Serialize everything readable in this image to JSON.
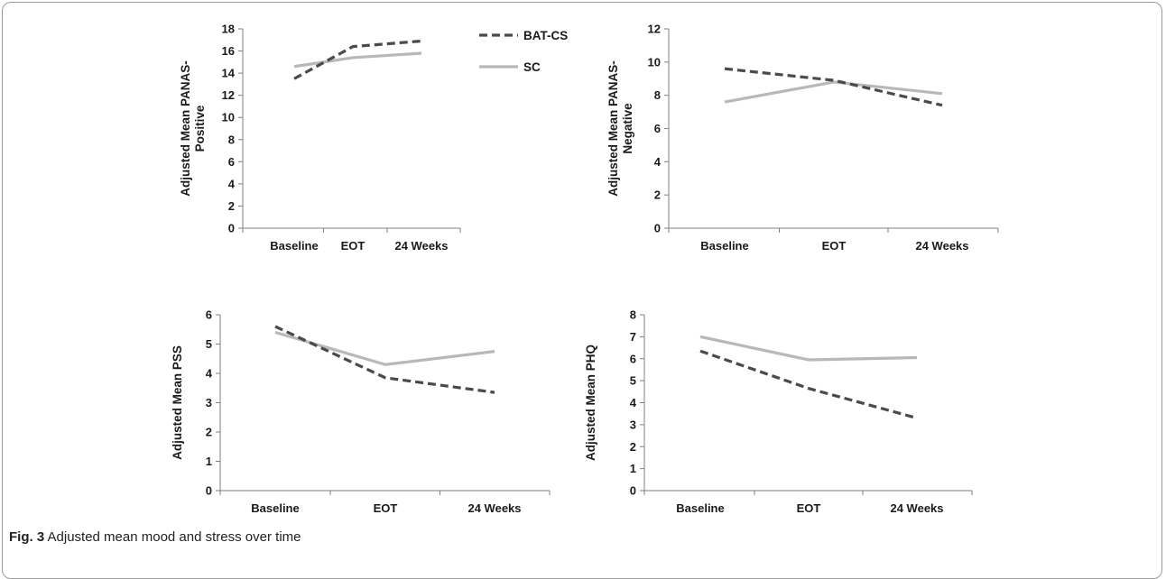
{
  "legend": [
    {
      "name": "BAT-CS",
      "color": "#4a4a4a",
      "dashed": true
    },
    {
      "name": "SC",
      "color": "#b8b8b8",
      "dashed": false
    }
  ],
  "caption": {
    "label": "Fig. 3",
    "text": "Adjusted mean mood and stress over time"
  },
  "chart_data": [
    {
      "type": "line",
      "title": "",
      "ylabel": "Adjusted Mean PANAS-Positive",
      "ylabel_lines": [
        "Adjusted Mean PANAS-",
        "Positive"
      ],
      "categories": [
        "Baseline",
        "EOT",
        "24 Weeks"
      ],
      "ylim": [
        0,
        18
      ],
      "yticks": [
        0,
        2,
        4,
        6,
        8,
        10,
        12,
        14,
        16,
        18
      ],
      "series": [
        {
          "name": "BAT-CS",
          "values": [
            13.5,
            16.4,
            16.9
          ]
        },
        {
          "name": "SC",
          "values": [
            14.6,
            15.4,
            15.8
          ]
        }
      ]
    },
    {
      "type": "line",
      "title": "",
      "ylabel": "Adjusted Mean PANAS-Negative",
      "ylabel_lines": [
        "Adjusted Mean PANAS-",
        "Negative"
      ],
      "categories": [
        "Baseline",
        "EOT",
        "24 Weeks"
      ],
      "ylim": [
        0,
        12
      ],
      "yticks": [
        0,
        2,
        4,
        6,
        8,
        10,
        12
      ],
      "series": [
        {
          "name": "BAT-CS",
          "values": [
            9.6,
            8.9,
            7.4
          ]
        },
        {
          "name": "SC",
          "values": [
            7.6,
            8.8,
            8.1
          ]
        }
      ]
    },
    {
      "type": "line",
      "title": "",
      "ylabel": "Adjusted Mean PSS",
      "ylabel_lines": [
        "Adjusted Mean PSS"
      ],
      "categories": [
        "Baseline",
        "EOT",
        "24 Weeks"
      ],
      "ylim": [
        0,
        6
      ],
      "yticks": [
        0,
        1,
        2,
        3,
        4,
        5,
        6
      ],
      "series": [
        {
          "name": "BAT-CS",
          "values": [
            5.6,
            3.85,
            3.35
          ]
        },
        {
          "name": "SC",
          "values": [
            5.4,
            4.3,
            4.75
          ]
        }
      ]
    },
    {
      "type": "line",
      "title": "",
      "ylabel": "Adjusted Mean PHQ",
      "ylabel_lines": [
        "Adjusted Mean PHQ"
      ],
      "categories": [
        "Baseline",
        "EOT",
        "24 Weeks"
      ],
      "ylim": [
        0,
        8
      ],
      "yticks": [
        0,
        1,
        2,
        3,
        4,
        5,
        6,
        7,
        8
      ],
      "series": [
        {
          "name": "BAT-CS",
          "values": [
            6.35,
            4.65,
            3.3
          ]
        },
        {
          "name": "SC",
          "values": [
            7.0,
            5.95,
            6.05
          ]
        }
      ]
    }
  ]
}
